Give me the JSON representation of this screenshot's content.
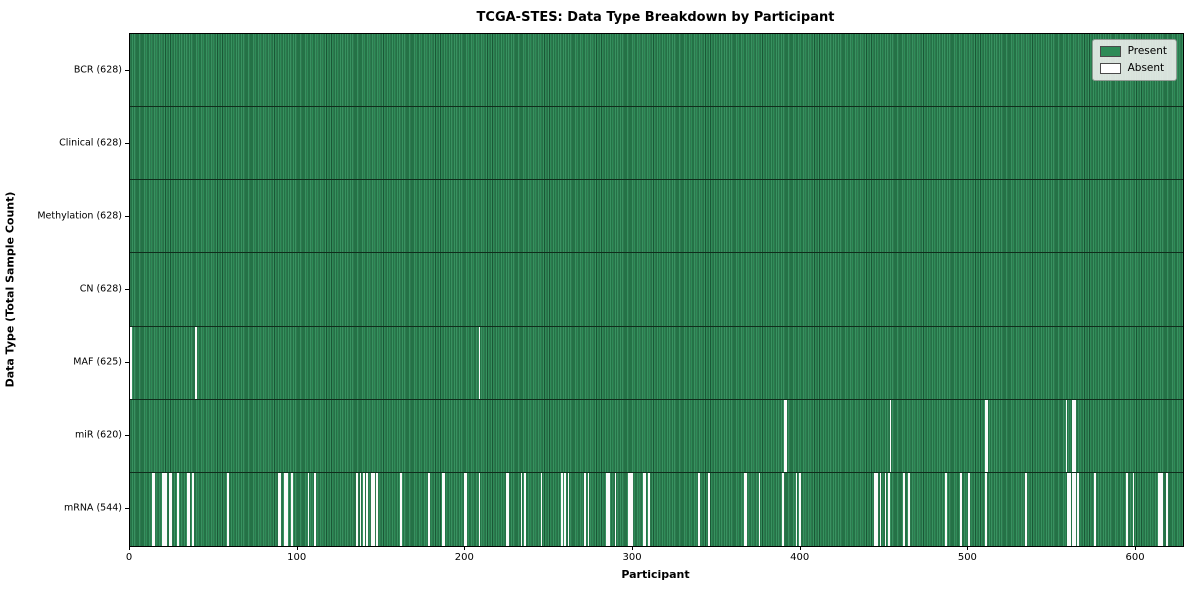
{
  "title": "TCGA-STES: Data Type Breakdown by Participant",
  "legend": {
    "present_label": "Present",
    "absent_label": "Absent"
  },
  "axes": {
    "x_title": "Participant",
    "y_title": "Data Type (Total Sample Count)"
  },
  "chart_data": {
    "type": "heatmap",
    "title": "TCGA-STES: Data Type Breakdown by Participant",
    "xlabel": "Participant",
    "ylabel": "Data Type (Total Sample Count)",
    "legend": [
      "Present",
      "Absent"
    ],
    "legend_position": "upper right",
    "grid": false,
    "n_participants": 628,
    "xlim": [
      0,
      628
    ],
    "x_ticks": [
      0,
      100,
      200,
      300,
      400,
      500,
      600
    ],
    "colors": {
      "present": "#2e8b57",
      "absent": "#ffffff",
      "bar_edge": "#102d1c"
    },
    "rows": [
      {
        "label": "BCR (628)",
        "data_type": "BCR",
        "present_count": 628,
        "absent_count": 0,
        "absent_indices": []
      },
      {
        "label": "Clinical (628)",
        "data_type": "Clinical",
        "present_count": 628,
        "absent_count": 0,
        "absent_indices": []
      },
      {
        "label": "Methylation (628)",
        "data_type": "Methylation",
        "present_count": 628,
        "absent_count": 0,
        "absent_indices": []
      },
      {
        "label": "CN (628)",
        "data_type": "CN",
        "present_count": 628,
        "absent_count": 0,
        "absent_indices": []
      },
      {
        "label": "MAF (625)",
        "data_type": "MAF",
        "present_count": 625,
        "absent_count": 3,
        "absent_indices": [
          0,
          39,
          208
        ]
      },
      {
        "label": "miR (620)",
        "data_type": "miR",
        "present_count": 620,
        "absent_count": 8,
        "absent_indices": [
          390,
          391,
          453,
          510,
          511,
          558,
          562,
          563
        ]
      },
      {
        "label": "mRNA (544)",
        "data_type": "mRNA",
        "present_count": 544,
        "absent_count": 84,
        "absent_indices": [
          13,
          14,
          19,
          20,
          21,
          23,
          24,
          28,
          34,
          35,
          37,
          58,
          88,
          89,
          92,
          93,
          96,
          106,
          110,
          135,
          137,
          139,
          141,
          144,
          145,
          147,
          161,
          178,
          186,
          187,
          199,
          200,
          208,
          224,
          225,
          233,
          235,
          245,
          257,
          259,
          261,
          271,
          273,
          284,
          285,
          289,
          297,
          298,
          299,
          306,
          307,
          309,
          339,
          345,
          366,
          367,
          375,
          389,
          397,
          399,
          444,
          445,
          447,
          450,
          452,
          461,
          464,
          486,
          495,
          500,
          510,
          534,
          559,
          560,
          562,
          563,
          565,
          575,
          594,
          598,
          613,
          614,
          615,
          618
        ]
      }
    ]
  }
}
